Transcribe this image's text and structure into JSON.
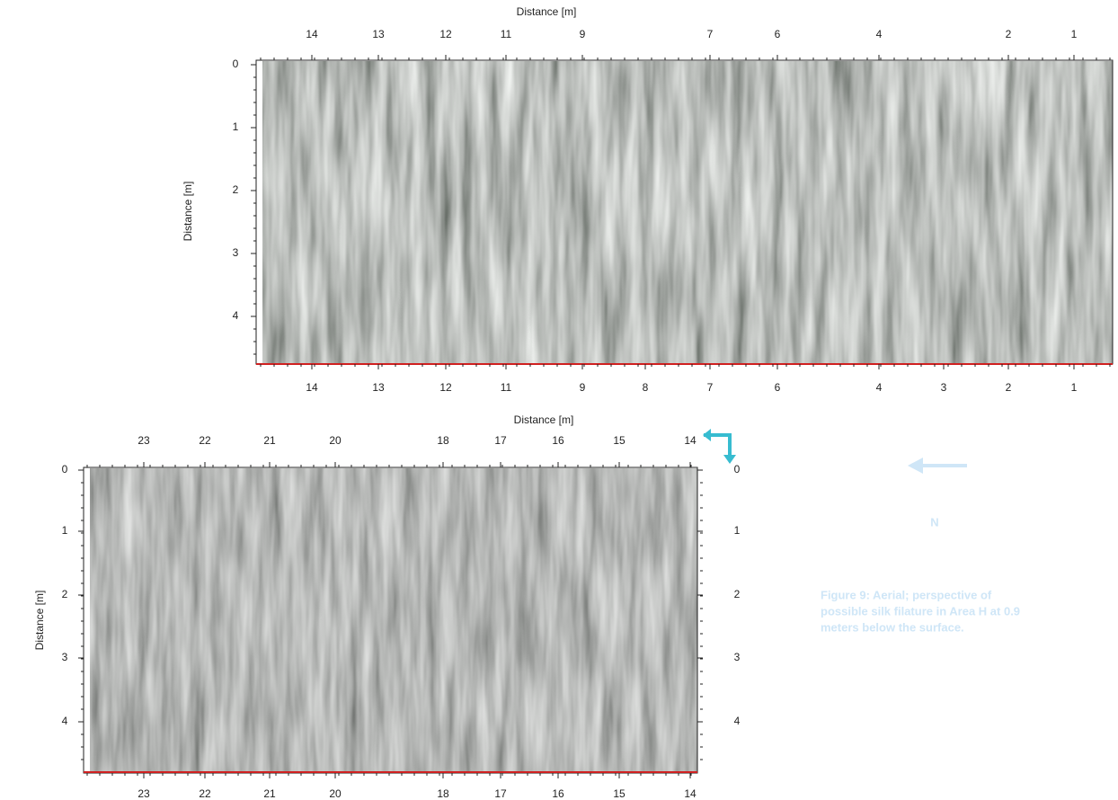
{
  "top_panel": {
    "x_axis_label": "Distance [m]",
    "y_axis_label": "Distance [m]",
    "top_ticks": [
      14,
      13,
      12,
      11,
      9,
      7,
      6,
      4,
      2,
      1
    ],
    "bottom_ticks": [
      14,
      13,
      12,
      11,
      9,
      8,
      7,
      6,
      4,
      3,
      2,
      1
    ],
    "y_ticks": [
      0,
      1,
      2,
      3,
      4
    ]
  },
  "bottom_panel": {
    "x_axis_label": "Distance [m]",
    "y_axis_label": "Distance [m]",
    "top_ticks": [
      23,
      22,
      21,
      20,
      18,
      17,
      16,
      15,
      14
    ],
    "bottom_ticks": [
      23,
      22,
      21,
      20,
      18,
      17,
      16,
      15,
      14
    ],
    "y_ticks": [
      0,
      1,
      2,
      3,
      4
    ],
    "right_ticks": [
      0,
      1,
      2,
      3,
      4
    ]
  },
  "compass": {
    "label": "N"
  },
  "caption": {
    "lines": [
      "Figure 9: Aerial; perspective of",
      "possible silk filature in Area H at 0.9",
      "meters below the surface."
    ]
  }
}
